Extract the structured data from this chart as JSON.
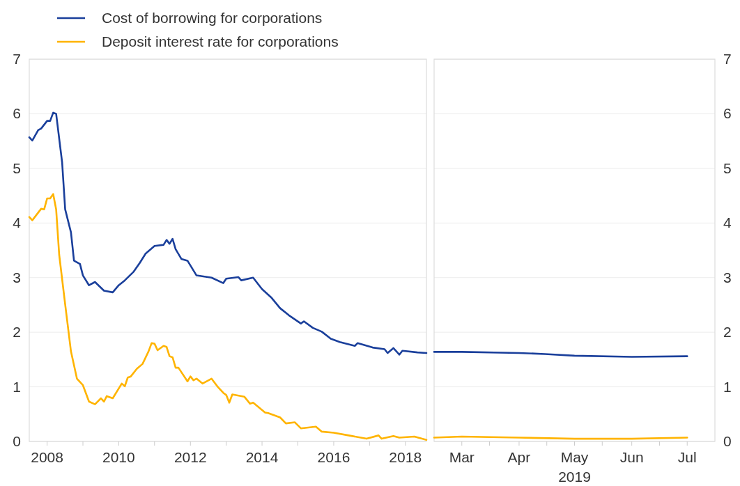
{
  "chart_data": [
    {
      "type": "line",
      "legend": "top left",
      "grid": "y",
      "xlim": [
        "2008-01",
        "2019-02"
      ],
      "ylim": [
        0,
        7
      ],
      "yticks": [
        0,
        1,
        2,
        3,
        4,
        5,
        6,
        7
      ],
      "xticks": [
        {
          "value": "2008-07",
          "label": "2008"
        },
        {
          "value": "2009-07",
          "label": null
        },
        {
          "value": "2010-07",
          "label": "2010"
        },
        {
          "value": "2011-07",
          "label": null
        },
        {
          "value": "2012-07",
          "label": "2012"
        },
        {
          "value": "2013-07",
          "label": null
        },
        {
          "value": "2014-07",
          "label": "2014"
        },
        {
          "value": "2015-07",
          "label": null
        },
        {
          "value": "2016-07",
          "label": "2016"
        },
        {
          "value": "2017-07",
          "label": null
        },
        {
          "value": "2018-07",
          "label": "2018"
        }
      ],
      "series": [
        {
          "name": "Cost of borrowing for corporations",
          "color": "#1a3f9b",
          "x": [
            "2008-01",
            "2008-02",
            "2008-04",
            "2008-05",
            "2008-07",
            "2008-08",
            "2008-09",
            "2008-10",
            "2008-12",
            "2009-01",
            "2009-03",
            "2009-04",
            "2009-06",
            "2009-07",
            "2009-09",
            "2009-11",
            "2010-02",
            "2010-05",
            "2010-07",
            "2010-09",
            "2010-12",
            "2011-02",
            "2011-04",
            "2011-07",
            "2011-10",
            "2011-11",
            "2011-12",
            "2012-01",
            "2012-02",
            "2012-04",
            "2012-06",
            "2012-09",
            "2013-02",
            "2013-06",
            "2013-07",
            "2013-11",
            "2013-12",
            "2014-04",
            "2014-07",
            "2014-10",
            "2015-01",
            "2015-04",
            "2015-08",
            "2015-09",
            "2015-12",
            "2016-03",
            "2016-06",
            "2016-09",
            "2017-02",
            "2017-03",
            "2017-08",
            "2017-12",
            "2018-01",
            "2018-03",
            "2018-05",
            "2018-06",
            "2018-11",
            "2019-02"
          ],
          "values": [
            5.57,
            5.51,
            5.7,
            5.73,
            5.87,
            5.87,
            6.02,
            6.0,
            5.11,
            4.25,
            3.83,
            3.31,
            3.25,
            3.04,
            2.86,
            2.92,
            2.76,
            2.73,
            2.86,
            2.95,
            3.11,
            3.27,
            3.44,
            3.58,
            3.6,
            3.69,
            3.62,
            3.71,
            3.52,
            3.34,
            3.31,
            3.04,
            3.0,
            2.9,
            2.98,
            3.01,
            2.95,
            3.0,
            2.79,
            2.64,
            2.44,
            2.31,
            2.16,
            2.2,
            2.08,
            2.01,
            1.88,
            1.82,
            1.75,
            1.8,
            1.72,
            1.69,
            1.62,
            1.71,
            1.59,
            1.66,
            1.63,
            1.62
          ]
        },
        {
          "name": "Deposit interest rate for corporations",
          "color": "#ffb400",
          "x": [
            "2008-01",
            "2008-02",
            "2008-04",
            "2008-05",
            "2008-06",
            "2008-07",
            "2008-08",
            "2008-09",
            "2008-10",
            "2008-11",
            "2009-01",
            "2009-03",
            "2009-05",
            "2009-07",
            "2009-09",
            "2009-11",
            "2010-01",
            "2010-02",
            "2010-03",
            "2010-05",
            "2010-08",
            "2010-09",
            "2010-10",
            "2010-11",
            "2011-01",
            "2011-03",
            "2011-05",
            "2011-06",
            "2011-07",
            "2011-08",
            "2011-10",
            "2011-11",
            "2011-12",
            "2012-01",
            "2012-02",
            "2012-03",
            "2012-06",
            "2012-07",
            "2012-08",
            "2012-09",
            "2012-11",
            "2013-02",
            "2013-04",
            "2013-06",
            "2013-07",
            "2013-08",
            "2013-09",
            "2014-01",
            "2014-03",
            "2014-04",
            "2014-08",
            "2014-09",
            "2015-01",
            "2015-03",
            "2015-06",
            "2015-08",
            "2016-01",
            "2016-03",
            "2016-07",
            "2016-12",
            "2017-06",
            "2017-10",
            "2017-11",
            "2018-03",
            "2018-05",
            "2018-10",
            "2019-02"
          ],
          "values": [
            4.11,
            4.05,
            4.19,
            4.26,
            4.25,
            4.45,
            4.45,
            4.53,
            4.25,
            3.42,
            2.51,
            1.65,
            1.15,
            1.03,
            0.73,
            0.68,
            0.79,
            0.73,
            0.83,
            0.79,
            1.06,
            1.01,
            1.17,
            1.19,
            1.33,
            1.42,
            1.65,
            1.8,
            1.79,
            1.67,
            1.75,
            1.73,
            1.56,
            1.54,
            1.35,
            1.35,
            1.1,
            1.19,
            1.12,
            1.15,
            1.06,
            1.15,
            1.01,
            0.89,
            0.85,
            0.71,
            0.86,
            0.82,
            0.69,
            0.71,
            0.53,
            0.52,
            0.44,
            0.33,
            0.35,
            0.24,
            0.27,
            0.18,
            0.16,
            0.11,
            0.05,
            0.11,
            0.05,
            0.1,
            0.07,
            0.09,
            0.03
          ]
        }
      ]
    },
    {
      "type": "line",
      "grid": "y",
      "xlabel": "2019",
      "xlim": [
        "2019-02-14",
        "2019-07-16"
      ],
      "y2lim": [
        0,
        7
      ],
      "y2ticks": [
        0,
        1,
        2,
        3,
        4,
        5,
        6,
        7
      ],
      "xticks": [
        {
          "value": "2019-03-01",
          "label": "Mar"
        },
        {
          "value": "2019-03-16",
          "label": null
        },
        {
          "value": "2019-04-01",
          "label": "Apr"
        },
        {
          "value": "2019-04-16",
          "label": null
        },
        {
          "value": "2019-05-01",
          "label": "May"
        },
        {
          "value": "2019-05-16",
          "label": null
        },
        {
          "value": "2019-06-01",
          "label": "Jun"
        },
        {
          "value": "2019-06-16",
          "label": null
        },
        {
          "value": "2019-07-01",
          "label": "Jul"
        }
      ],
      "series": [
        {
          "color": "#1a3f9b",
          "axis": "y2",
          "x": [
            "2019-02-14",
            "2019-03-01",
            "2019-04-01",
            "2019-04-15",
            "2019-05-01",
            "2019-06-01",
            "2019-07-01"
          ],
          "values": [
            1.64,
            1.64,
            1.62,
            1.6,
            1.57,
            1.55,
            1.56
          ]
        },
        {
          "color": "#ffb400",
          "axis": "y2",
          "x": [
            "2019-02-14",
            "2019-03-01",
            "2019-04-01",
            "2019-05-01",
            "2019-06-01",
            "2019-07-01"
          ],
          "values": [
            0.07,
            0.09,
            0.07,
            0.05,
            0.05,
            0.07
          ]
        }
      ]
    }
  ]
}
